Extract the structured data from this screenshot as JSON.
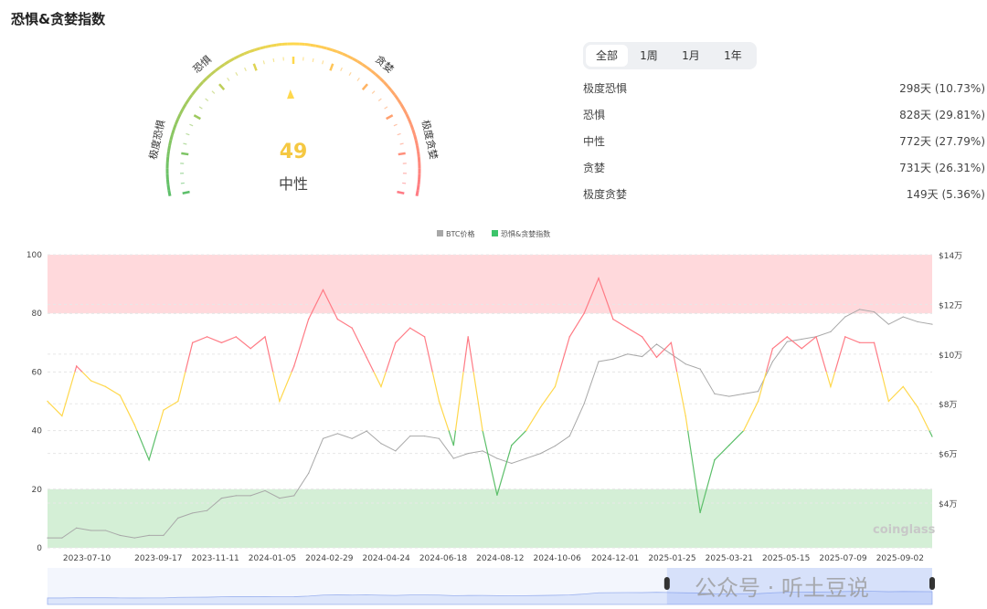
{
  "title": "恐惧&贪婪指数",
  "gauge": {
    "value": 49,
    "label": "中性",
    "zones": [
      "极度恐惧",
      "恐惧",
      "中性",
      "贪婪",
      "极度贪婪"
    ]
  },
  "tabs": [
    {
      "label": "全部",
      "active": true
    },
    {
      "label": "1周"
    },
    {
      "label": "1月"
    },
    {
      "label": "1年"
    }
  ],
  "stats": [
    {
      "label": "极度恐惧",
      "value": "298天 (10.73%)"
    },
    {
      "label": "恐惧",
      "value": "828天 (29.81%)"
    },
    {
      "label": "中性",
      "value": "772天 (27.79%)"
    },
    {
      "label": "贪婪",
      "value": "731天 (26.31%)"
    },
    {
      "label": "极度贪婪",
      "value": "149天 (5.36%)"
    }
  ],
  "watermark": "公众号 · 听土豆说",
  "colors": {
    "fear": "#5cbf6a",
    "neutral": "#ffd84d",
    "greed": "#ff7b85",
    "btc": "#a8a8a8",
    "greed_band": "#ffd9dc",
    "fear_band": "#d4efd6"
  },
  "chart_data": {
    "type": "line",
    "legend": [
      "BTC价格",
      "恐惧&贪婪指数"
    ],
    "legend_position": "top",
    "brand": "coinglass",
    "xlim": [
      "2023-06-02",
      "2025-10-03"
    ],
    "x_ticks": [
      "2023-07-10",
      "2023-09-17",
      "2023-11-11",
      "2024-01-05",
      "2024-02-29",
      "2024-04-24",
      "2024-06-18",
      "2024-08-12",
      "2024-10-06",
      "2024-12-01",
      "2025-01-25",
      "2025-03-21",
      "2025-05-15",
      "2025-07-09",
      "2025-09-02"
    ],
    "y_left": {
      "range": [
        0,
        100
      ],
      "ticks": [
        "0",
        "20",
        "40",
        "60",
        "80",
        "100"
      ]
    },
    "y_right": {
      "range_wan": [
        2.2,
        14
      ],
      "ticks": [
        {
          "v": 4,
          "label": "$4万"
        },
        {
          "v": 6,
          "label": "$6万"
        },
        {
          "v": 8,
          "label": "$8万"
        },
        {
          "v": 10,
          "label": "$10万"
        },
        {
          "v": 12,
          "label": "$12万"
        },
        {
          "v": 14,
          "label": "$14万"
        }
      ]
    },
    "bands": [
      {
        "from": 0,
        "to": 20,
        "zone": "fear"
      },
      {
        "from": 80,
        "to": 100,
        "zone": "greed"
      }
    ],
    "dates": [
      "2023-06-02",
      "2023-06-16",
      "2023-06-30",
      "2023-07-14",
      "2023-07-28",
      "2023-08-11",
      "2023-08-25",
      "2023-09-08",
      "2023-09-22",
      "2023-10-06",
      "2023-10-20",
      "2023-11-03",
      "2023-11-17",
      "2023-12-01",
      "2023-12-15",
      "2023-12-29",
      "2024-01-12",
      "2024-01-26",
      "2024-02-09",
      "2024-02-23",
      "2024-03-08",
      "2024-03-22",
      "2024-04-05",
      "2024-04-19",
      "2024-05-03",
      "2024-05-17",
      "2024-05-31",
      "2024-06-14",
      "2024-06-28",
      "2024-07-12",
      "2024-07-26",
      "2024-08-09",
      "2024-08-23",
      "2024-09-06",
      "2024-09-20",
      "2024-10-04",
      "2024-10-18",
      "2024-11-01",
      "2024-11-15",
      "2024-11-29",
      "2024-12-13",
      "2024-12-27",
      "2025-01-10",
      "2025-01-24",
      "2025-02-07",
      "2025-02-21",
      "2025-03-07",
      "2025-03-21",
      "2025-04-04",
      "2025-04-18",
      "2025-05-02",
      "2025-05-16",
      "2025-05-30",
      "2025-06-13",
      "2025-06-27",
      "2025-07-11",
      "2025-07-25",
      "2025-08-08",
      "2025-08-22",
      "2025-09-05",
      "2025-09-19",
      "2025-10-03"
    ],
    "series": [
      {
        "name": "恐惧&贪婪指数",
        "axis": "left",
        "values": [
          50,
          45,
          62,
          57,
          55,
          52,
          42,
          30,
          47,
          50,
          70,
          72,
          70,
          72,
          68,
          72,
          50,
          62,
          78,
          88,
          78,
          75,
          65,
          55,
          70,
          75,
          72,
          50,
          35,
          72,
          40,
          18,
          35,
          40,
          48,
          55,
          72,
          80,
          92,
          78,
          75,
          72,
          65,
          70,
          45,
          12,
          30,
          35,
          40,
          50,
          68,
          72,
          68,
          72,
          55,
          72,
          70,
          70,
          50,
          55,
          48,
          38
        ]
      },
      {
        "name": "BTC价格",
        "axis": "right",
        "unit": "万美元",
        "values": [
          2.6,
          2.6,
          3.0,
          2.9,
          2.9,
          2.7,
          2.6,
          2.7,
          2.7,
          3.4,
          3.6,
          3.7,
          4.2,
          4.3,
          4.3,
          4.5,
          4.2,
          4.3,
          5.2,
          6.6,
          6.8,
          6.6,
          6.9,
          6.4,
          6.1,
          6.7,
          6.7,
          6.6,
          5.8,
          6.0,
          6.1,
          5.8,
          5.6,
          5.8,
          6.0,
          6.3,
          6.7,
          8.0,
          9.7,
          9.8,
          10.0,
          9.9,
          10.4,
          10.0,
          9.6,
          9.4,
          8.4,
          8.3,
          8.4,
          8.5,
          9.7,
          10.5,
          10.6,
          10.7,
          10.9,
          11.5,
          11.8,
          11.7,
          11.2,
          11.5,
          11.3,
          11.2
        ]
      }
    ],
    "navigator_selection": [
      "2025-01-20",
      "2025-10-03"
    ]
  }
}
